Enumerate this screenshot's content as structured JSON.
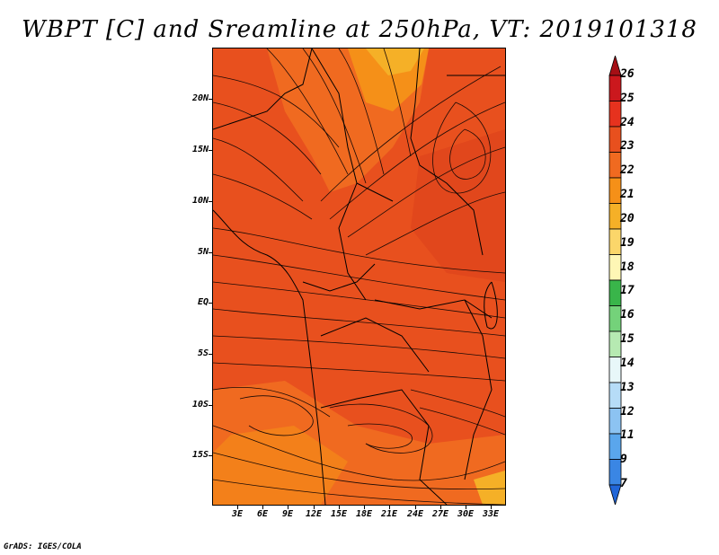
{
  "title": "WBPT [C] and Sreamline at 250hPa, VT: 2019101318",
  "credit": "GrADS: IGES/COLA",
  "map": {
    "lat_labels": [
      "20N",
      "15N",
      "10N",
      "5N",
      "EQ",
      "5S",
      "10S",
      "15S"
    ],
    "lon_labels": [
      "3E",
      "6E",
      "9E",
      "12E",
      "15E",
      "18E",
      "21E",
      "24E",
      "27E",
      "30E",
      "33E"
    ],
    "fill_colors": {
      "base": "#e8501e",
      "light": "#f06a20",
      "orange": "#f59018",
      "yellow_orange": "#f5b027",
      "dark": "#d93d1a"
    }
  },
  "colorbar": {
    "labels": [
      "26",
      "25",
      "24",
      "23",
      "22",
      "21",
      "20",
      "19",
      "18",
      "17",
      "16",
      "15",
      "14",
      "13",
      "12",
      "11",
      "9",
      "7"
    ],
    "colors": [
      "#a50f15",
      "#cb181d",
      "#e6321e",
      "#e8501e",
      "#f06a20",
      "#f59018",
      "#f5b027",
      "#fbd66a",
      "#fef6b5",
      "#39b54a",
      "#74d27a",
      "#b6eab2",
      "#e8f7f9",
      "#b6dcf7",
      "#8cc3f2",
      "#5aa6ec",
      "#3a86e4",
      "#2166d8"
    ]
  }
}
